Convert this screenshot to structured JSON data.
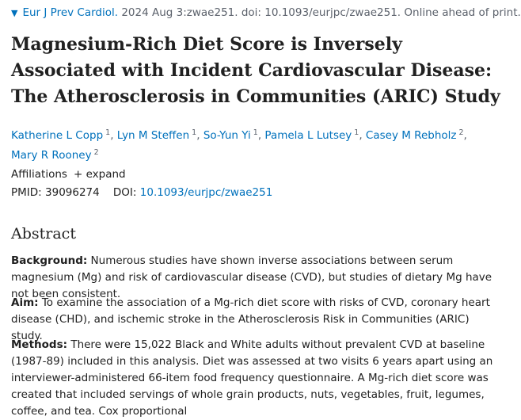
{
  "citation": {
    "journal": "Eur J Prev Cardiol.",
    "details": " 2024 Aug 3:zwae251. doi: 10.1093/eurjpc/zwae251. Online ahead of print."
  },
  "title": "Magnesium-Rich Diet Score is Inversely Associated with Incident Cardiovascular Disease: The Atherosclerosis in Communities (ARIC) Study",
  "authors": [
    {
      "name": "Katherine L Copp",
      "aff": "1"
    },
    {
      "name": "Lyn M Steffen",
      "aff": "1"
    },
    {
      "name": "So-Yun Yi",
      "aff": "1"
    },
    {
      "name": "Pamela L Lutsey",
      "aff": "1"
    },
    {
      "name": "Casey M Rebholz",
      "aff": "2"
    },
    {
      "name": "Mary R Rooney",
      "aff": "2"
    }
  ],
  "affiliations": {
    "label": "Affiliations",
    "toggle": "expand",
    "toggle_icon": "plus-icon"
  },
  "ids": {
    "pmid_label": "PMID:",
    "pmid": "39096274",
    "doi_label": "DOI:",
    "doi": "10.1093/eurjpc/zwae251"
  },
  "abstract": {
    "heading": "Abstract",
    "background_label": "Background:",
    "background_text": " Numerous studies have shown inverse associations between serum magnesium (Mg) and risk of cardiovascular disease (CVD), but studies of dietary Mg have not been consistent.",
    "aim_label": "Aim:",
    "aim_text": " To examine the association of a Mg-rich diet score with risks of CVD, coronary heart disease (CHD), and ischemic stroke in the Atherosclerosis Risk in Communities (ARIC) study.",
    "methods_label": "Methods:",
    "methods_text": " There were 15,022 Black and White adults without prevalent CVD at baseline (1987-89) included in this analysis. Diet was assessed at two visits 6 years apart using an interviewer-administered 66-item food frequency questionnaire. A Mg-rich diet score was created that included servings of whole grain products, nuts, vegetables, fruit, legumes, coffee, and tea. Cox proportional"
  },
  "colors": {
    "link": "#0071bc",
    "text": "#212121",
    "muted": "#5b616b"
  }
}
